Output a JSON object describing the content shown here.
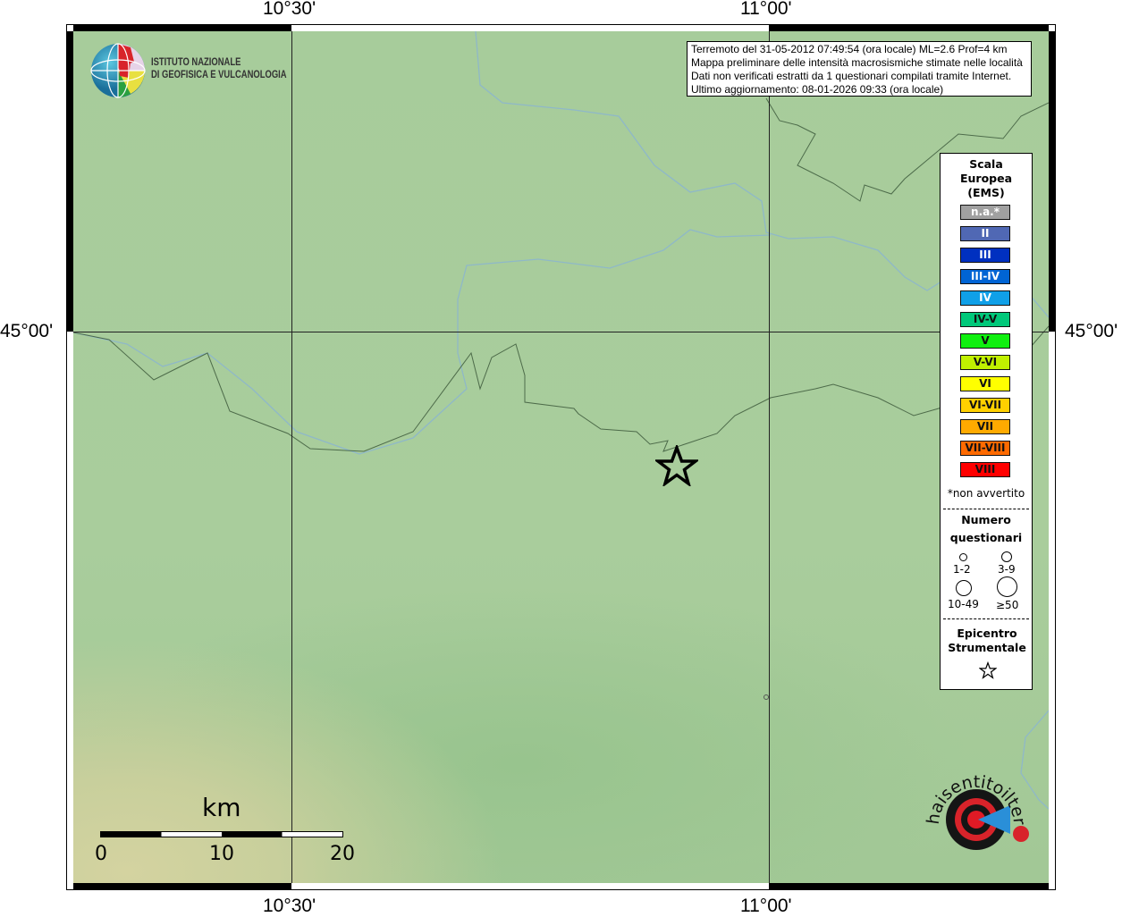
{
  "axes": {
    "top_ticks": [
      "10°30'",
      "11°00'"
    ],
    "bottom_ticks": [
      "10°30'",
      "11°00'"
    ],
    "left_ticks": [
      "45°00'"
    ],
    "right_ticks": [
      "45°00'"
    ]
  },
  "logo_ingv": {
    "line1": "ISTITUTO NAZIONALE",
    "line2": "DI GEOFISICA E VULCANOLOGIA"
  },
  "logo_hsit": {
    "text": "www.haisentitoilterremoto.it"
  },
  "info": {
    "line1": "Terremoto del 31-05-2012 07:49:54 (ora locale) ML=2.6 Prof=4 km",
    "line2": "Mappa preliminare delle intensità macrosismiche stimate nelle località",
    "line3": "Dati non verificati estratti da 1 questionari compilati tramite Internet.",
    "line4": "Ultimo aggiornamento: 08-01-2026 09:33 (ora locale)"
  },
  "legend": {
    "title1": "Scala",
    "title2": "Europea",
    "title3": "(EMS)",
    "scale": [
      {
        "label": "n.a.*",
        "color": "#a0a0a0",
        "text": "#ffffff"
      },
      {
        "label": "II",
        "color": "#5068b4",
        "text": "#ffffff"
      },
      {
        "label": "III",
        "color": "#0030c0",
        "text": "#ffffff"
      },
      {
        "label": "III-IV",
        "color": "#0064d4",
        "text": "#ffffff"
      },
      {
        "label": "IV",
        "color": "#10a0e8",
        "text": "#ffffff"
      },
      {
        "label": "IV-V",
        "color": "#00c87a",
        "text": "#111111"
      },
      {
        "label": "V",
        "color": "#10f010",
        "text": "#111111"
      },
      {
        "label": "V-VI",
        "color": "#c0f000",
        "text": "#111111"
      },
      {
        "label": "VI",
        "color": "#ffff00",
        "text": "#111111"
      },
      {
        "label": "VI-VII",
        "color": "#ffd000",
        "text": "#111111"
      },
      {
        "label": "VII",
        "color": "#ffaa00",
        "text": "#111111"
      },
      {
        "label": "VII-VIII",
        "color": "#ff6a00",
        "text": "#111111"
      },
      {
        "label": "VIII",
        "color": "#ff0000",
        "text": "#111111"
      }
    ],
    "na_note": "*non avvertito",
    "count_title1": "Numero",
    "count_title2": "questionari",
    "counts": [
      "1-2",
      "3-9",
      "10-49",
      "≥50"
    ],
    "epi_title1": "Epicentro",
    "epi_title2": "Strumentale"
  },
  "scalebar": {
    "unit": "km",
    "labels": [
      "0",
      "10",
      "20"
    ]
  }
}
